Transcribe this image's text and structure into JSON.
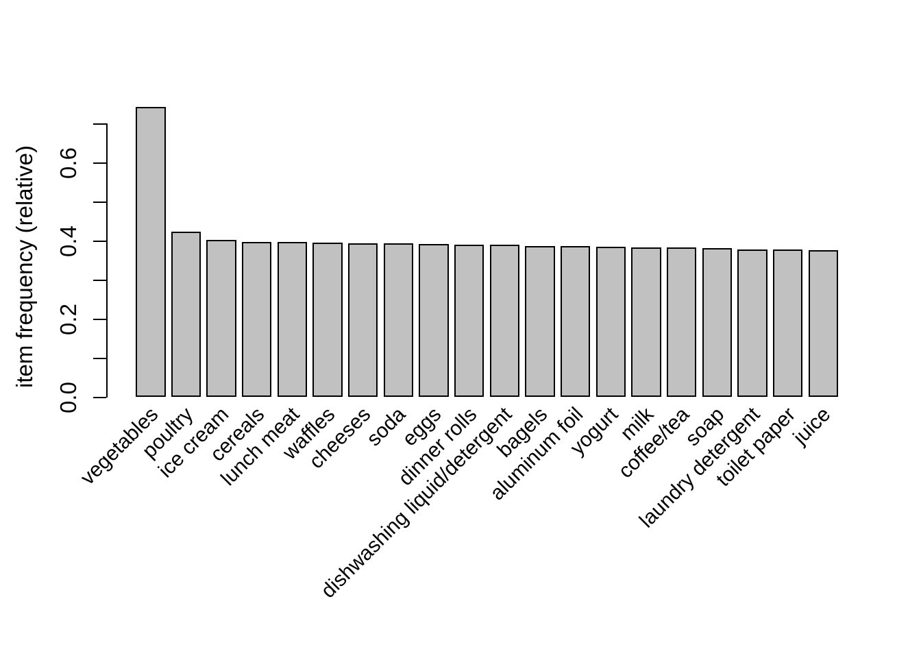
{
  "chart_data": {
    "type": "bar",
    "title": "",
    "xlabel": "",
    "ylabel": "item frequency (relative)",
    "categories": [
      "vegetables",
      "poultry",
      "ice cream",
      "cereals",
      "lunch meat",
      "waffles",
      "cheeses",
      "soda",
      "eggs",
      "dinner rolls",
      "dishwashing liquid/detergent",
      "bagels",
      "aluminum foil",
      "yogurt",
      "milk",
      "coffee/tea",
      "soap",
      "laundry detergent",
      "toilet paper",
      "juice"
    ],
    "values": [
      0.743,
      0.423,
      0.401,
      0.397,
      0.397,
      0.395,
      0.393,
      0.393,
      0.392,
      0.39,
      0.389,
      0.386,
      0.386,
      0.385,
      0.382,
      0.382,
      0.381,
      0.378,
      0.378,
      0.376
    ],
    "ylim": [
      0,
      0.7
    ],
    "ytick_step": 0.1,
    "ytick_labeled_values": [
      0.0,
      0.2,
      0.4,
      0.6
    ],
    "ytick_labels": [
      "0.0",
      "0.2",
      "0.4",
      "0.6"
    ],
    "x_label_rotation_deg": 45,
    "grid": "off",
    "legend": "none",
    "bar_fill_color": "#c1c1c1",
    "bar_border_color": "#000000",
    "axis_color": "#000000",
    "text_color": "#000000",
    "background_color": "#ffffff"
  }
}
